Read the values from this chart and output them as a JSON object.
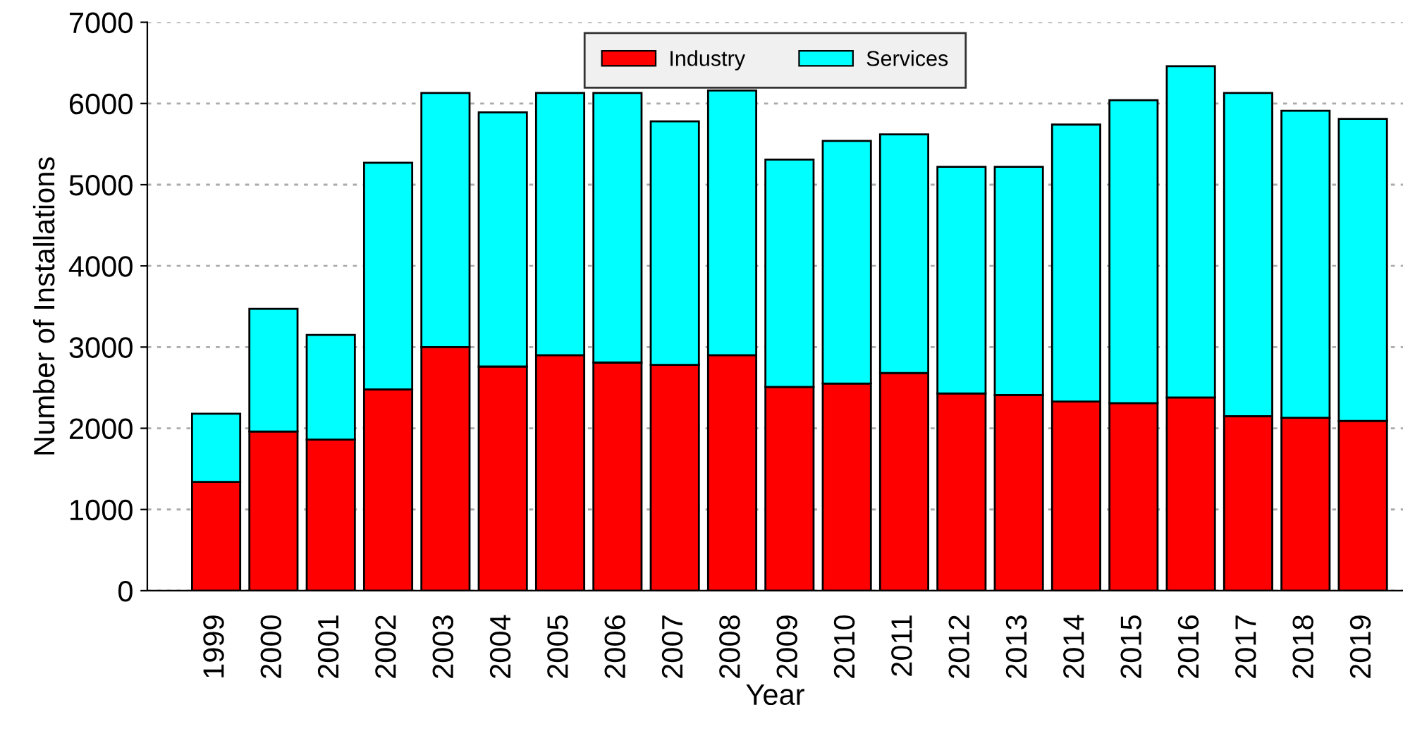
{
  "chart_data": {
    "type": "bar",
    "stacked": true,
    "xlabel": "Year",
    "ylabel": "Number of Installations",
    "categories": [
      "1999",
      "2000",
      "2001",
      "2002",
      "2003",
      "2004",
      "2005",
      "2006",
      "2007",
      "2008",
      "2009",
      "2010",
      "2011",
      "2012",
      "2013",
      "2014",
      "2015",
      "2016",
      "2017",
      "2018",
      "2019"
    ],
    "series": [
      {
        "name": "Industry",
        "color": "#ff0000",
        "values": [
          1340,
          1960,
          1860,
          2480,
          3000,
          2760,
          2900,
          2810,
          2780,
          2900,
          2510,
          2550,
          2680,
          2430,
          2410,
          2330,
          2310,
          2380,
          2150,
          2130,
          2090
        ]
      },
      {
        "name": "Services",
        "color": "#00ffff",
        "values": [
          840,
          1510,
          1290,
          2790,
          3130,
          3130,
          3230,
          3320,
          3000,
          3260,
          2800,
          2990,
          2940,
          2790,
          2810,
          3410,
          3730,
          4080,
          3980,
          3780,
          3720
        ]
      }
    ],
    "ylim": [
      0,
      7000
    ],
    "yticks": [
      0,
      1000,
      2000,
      3000,
      4000,
      5000,
      6000,
      7000
    ],
    "grid": "y",
    "legend": "top"
  }
}
